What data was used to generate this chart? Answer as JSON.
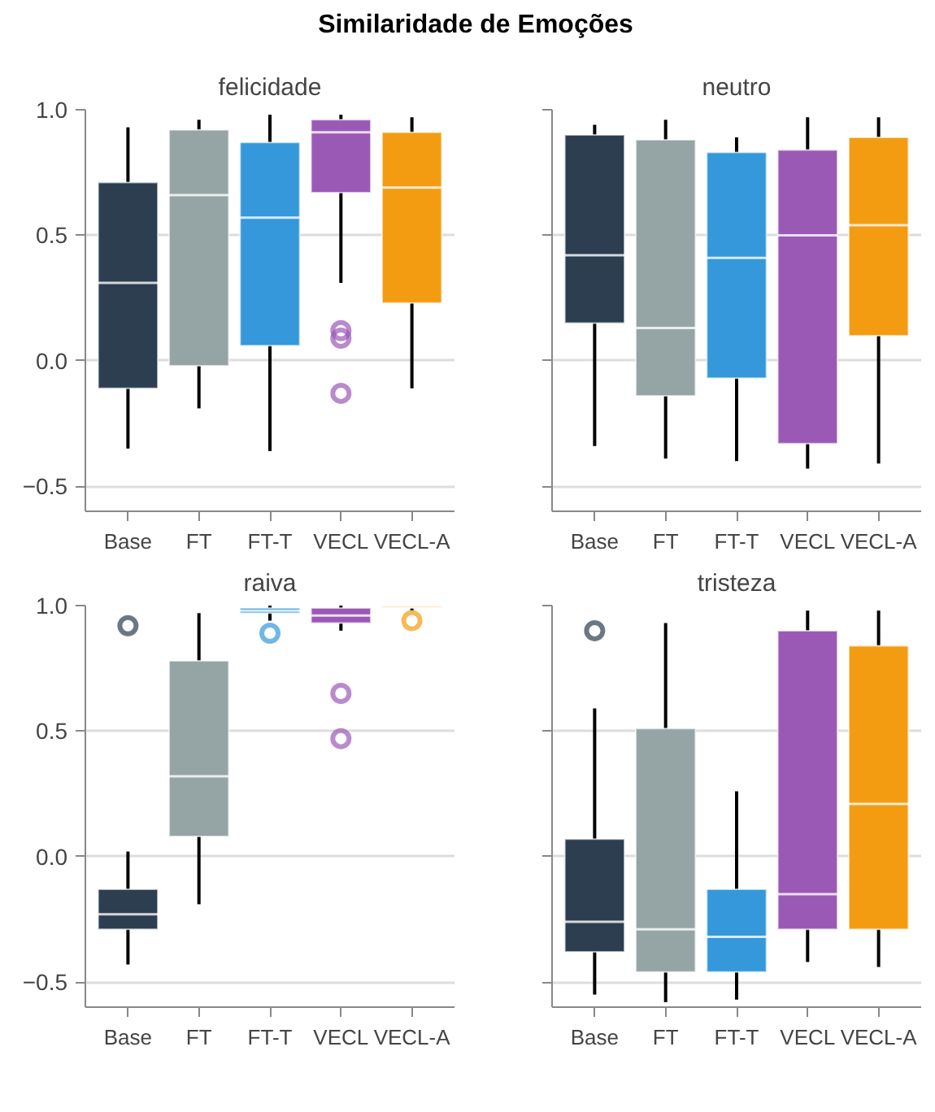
{
  "chart_data": [
    {
      "type": "box",
      "title": "felicidade",
      "annotations": [
        "Similaridade de Emoções"
      ],
      "categories": [
        "Base",
        "FT",
        "FT-T",
        "VECL",
        "VECL-A"
      ],
      "colors": [
        "#2c3e50",
        "#95a5a6",
        "#3498db",
        "#9b59b6",
        "#f39c12"
      ],
      "ylim": [
        -0.6,
        1.0
      ],
      "yticks": [
        {
          "value": -0.5,
          "label": "−0.5"
        },
        {
          "value": 0,
          "label": "0.0"
        },
        0.5,
        {
          "value": 1,
          "label": "1.0"
        }
      ],
      "grid": "y",
      "boxes": [
        {
          "low": -0.35,
          "q1": -0.11,
          "median": 0.31,
          "q3": 0.71,
          "high": 0.93
        },
        {
          "low": -0.19,
          "q1": -0.02,
          "median": 0.66,
          "q3": 0.92,
          "high": 0.96
        },
        {
          "low": -0.36,
          "q1": 0.06,
          "median": 0.57,
          "q3": 0.87,
          "high": 0.98
        },
        {
          "low": 0.31,
          "q1": 0.67,
          "median": 0.91,
          "q3": 0.96,
          "high": 0.98,
          "outliers": [
            0.12,
            0.09,
            -0.13
          ]
        },
        {
          "low": -0.11,
          "q1": 0.23,
          "median": 0.69,
          "q3": 0.91,
          "high": 0.97
        }
      ]
    },
    {
      "type": "box",
      "title": "neutro",
      "categories": [
        "Base",
        "FT",
        "FT-T",
        "VECL",
        "VECL-A"
      ],
      "colors": [
        "#2c3e50",
        "#95a5a6",
        "#3498db",
        "#9b59b6",
        "#f39c12"
      ],
      "ylim": [
        -0.6,
        1.0
      ],
      "yticks": [
        -0.5,
        0,
        0.5,
        1
      ],
      "grid": "y",
      "tick_labels": "x",
      "boxes": [
        {
          "low": -0.34,
          "q1": 0.15,
          "median": 0.42,
          "q3": 0.9,
          "high": 0.94
        },
        {
          "low": -0.39,
          "q1": -0.14,
          "median": 0.13,
          "q3": 0.88,
          "high": 0.96
        },
        {
          "low": -0.4,
          "q1": -0.07,
          "median": 0.41,
          "q3": 0.83,
          "high": 0.89
        },
        {
          "low": -0.43,
          "q1": -0.33,
          "median": 0.5,
          "q3": 0.84,
          "high": 0.97
        },
        {
          "low": -0.41,
          "q1": 0.1,
          "median": 0.54,
          "q3": 0.89,
          "high": 0.97
        }
      ]
    },
    {
      "type": "box",
      "title": "raiva",
      "categories": [
        "Base",
        "FT",
        "FT-T",
        "VECL",
        "VECL-A"
      ],
      "colors": [
        "#2c3e50",
        "#95a5a6",
        "#3498db",
        "#9b59b6",
        "#f39c12"
      ],
      "ylim": [
        -0.6,
        1.0
      ],
      "yticks": [
        {
          "value": -0.5,
          "label": "−0.5"
        },
        {
          "value": 0,
          "label": "0.0"
        },
        0.5,
        {
          "value": 1,
          "label": "1.0"
        }
      ],
      "grid": "y",
      "boxes": [
        {
          "low": -0.43,
          "q1": -0.29,
          "median": -0.23,
          "q3": -0.13,
          "high": 0.02,
          "outliers": [
            0.92
          ]
        },
        {
          "low": -0.19,
          "q1": 0.08,
          "median": 0.32,
          "q3": 0.78,
          "high": 0.97
        },
        {
          "low": 0.94,
          "q1": 0.97,
          "median": 0.98,
          "q3": 0.99,
          "high": 1.0,
          "outliers": [
            0.89
          ]
        },
        {
          "low": 0.9,
          "q1": 0.93,
          "median": 0.96,
          "q3": 0.99,
          "high": 1.0,
          "outliers": [
            0.65,
            0.47
          ]
        },
        {
          "low": 0.98,
          "q1": 0.99,
          "median": 0.995,
          "q3": 1.0,
          "high": 1.0,
          "outliers": [
            0.94
          ]
        }
      ]
    },
    {
      "type": "box",
      "title": "tristeza",
      "categories": [
        "Base",
        "FT",
        "FT-T",
        "VECL",
        "VECL-A"
      ],
      "colors": [
        "#2c3e50",
        "#95a5a6",
        "#3498db",
        "#9b59b6",
        "#f39c12"
      ],
      "ylim": [
        -0.6,
        1.0
      ],
      "yticks": [
        -0.5,
        0,
        0.5,
        1
      ],
      "grid": "y",
      "tick_labels": "x",
      "boxes": [
        {
          "low": -0.55,
          "q1": -0.38,
          "median": -0.26,
          "q3": 0.07,
          "high": 0.59,
          "outliers": [
            0.9
          ]
        },
        {
          "low": -0.58,
          "q1": -0.46,
          "median": -0.29,
          "q3": 0.51,
          "high": 0.93
        },
        {
          "low": -0.57,
          "q1": -0.46,
          "median": -0.32,
          "q3": -0.13,
          "high": 0.26
        },
        {
          "low": -0.42,
          "q1": -0.29,
          "median": -0.15,
          "q3": 0.9,
          "high": 0.98
        },
        {
          "low": -0.44,
          "q1": -0.29,
          "median": 0.21,
          "q3": 0.84,
          "high": 0.98
        }
      ]
    }
  ]
}
